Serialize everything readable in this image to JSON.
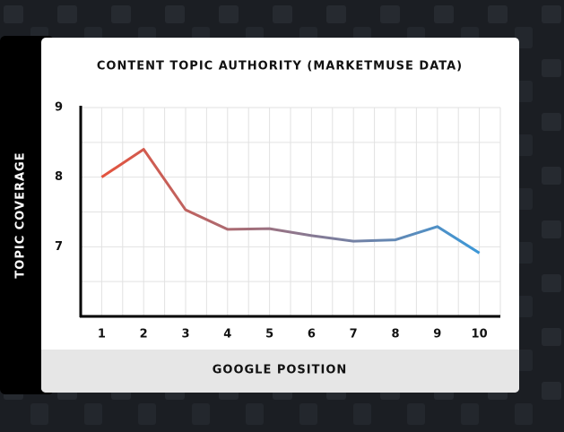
{
  "chart_data": {
    "type": "line",
    "title": "CONTENT TOPIC AUTHORITY (MARKETMUSE DATA)",
    "x_label": "GOOGLE POSITION",
    "y_label": "TOPIC COVERAGE",
    "x": [
      1,
      2,
      3,
      4,
      5,
      6,
      7,
      8,
      9,
      10
    ],
    "values": [
      8.0,
      8.4,
      7.53,
      7.25,
      7.26,
      7.16,
      7.08,
      7.1,
      7.29,
      6.91
    ],
    "gradient_colors": [
      "#e5533d",
      "#3b98d8"
    ],
    "xlim": [
      0.5,
      10.5
    ],
    "xticks": [
      1,
      2,
      3,
      4,
      5,
      6,
      7,
      8,
      9,
      10
    ],
    "ylim": [
      6,
      9
    ],
    "yticks": [
      7,
      8,
      9
    ],
    "grid": true
  }
}
